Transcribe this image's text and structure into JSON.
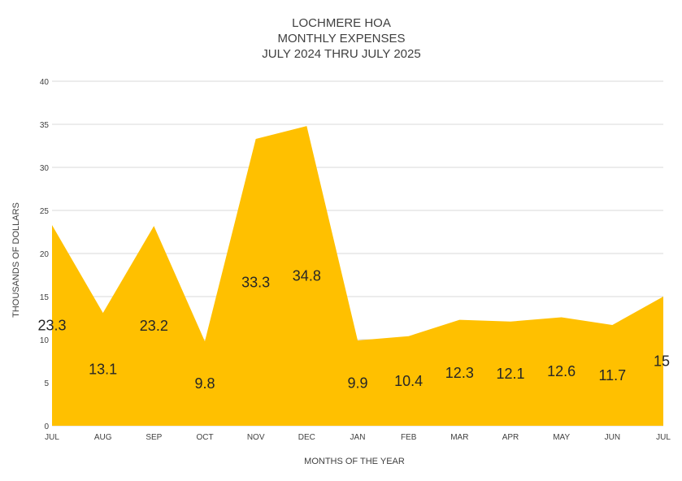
{
  "chart_data": {
    "type": "area",
    "title_lines": [
      "LOCHMERE HOA",
      "MONTHLY EXPENSES",
      "JULY 2024 THRU JULY 2025"
    ],
    "xlabel": "MONTHS OF THE YEAR",
    "ylabel": "THOUSANDS OF DOLLARS",
    "ylim": [
      0,
      40
    ],
    "yticks": [
      0,
      5,
      10,
      15,
      20,
      25,
      30,
      35,
      40
    ],
    "categories": [
      "JUL",
      "AUG",
      "SEP",
      "OCT",
      "NOV",
      "DEC",
      "JAN",
      "FEB",
      "MAR",
      "APR",
      "MAY",
      "JUN",
      "JUL"
    ],
    "values": [
      23.3,
      13.1,
      23.2,
      9.8,
      33.3,
      34.8,
      9.9,
      10.4,
      12.3,
      12.1,
      12.6,
      11.7,
      15
    ],
    "data_labels": [
      "23.3",
      "13.1",
      "23.2",
      "9.8",
      "33.3",
      "34.8",
      "9.9",
      "10.4",
      "12.3",
      "12.1",
      "12.6",
      "11.7",
      "15"
    ],
    "fill_color": "#FFC000",
    "grid": true,
    "legend": "none"
  }
}
